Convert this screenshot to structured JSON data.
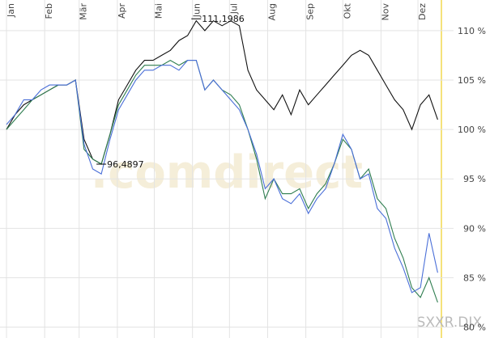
{
  "chart_data": {
    "type": "line",
    "watermark": ".comdirect",
    "symbol": "SXXR.DJX",
    "annotations": [
      {
        "text": "111,1986",
        "x": 154,
        "y": 111.1986
      },
      {
        "text": "96,4897",
        "x": 77,
        "y": 96.4897
      }
    ],
    "x": [
      0,
      7,
      14,
      21,
      28,
      35,
      42,
      49,
      56,
      63,
      70,
      77,
      84,
      91,
      98,
      105,
      112,
      119,
      126,
      133,
      140,
      147,
      154,
      161,
      168,
      175,
      182,
      189,
      196,
      203,
      210,
      217,
      224,
      231,
      238,
      245,
      252,
      259,
      266,
      273,
      280,
      287,
      294,
      301,
      308,
      315,
      322,
      329,
      336,
      343,
      350
    ],
    "xlim": [
      0,
      355
    ],
    "xticks": [
      {
        "value": 0,
        "label": "Jan"
      },
      {
        "value": 31,
        "label": "Feb"
      },
      {
        "value": 59,
        "label": "Mär"
      },
      {
        "value": 90,
        "label": "Apr"
      },
      {
        "value": 120,
        "label": "Mai"
      },
      {
        "value": 151,
        "label": "Jun"
      },
      {
        "value": 181,
        "label": "Jul"
      },
      {
        "value": 212,
        "label": "Aug"
      },
      {
        "value": 243,
        "label": "Sep"
      },
      {
        "value": 273,
        "label": "Okt"
      },
      {
        "value": 304,
        "label": "Nov"
      },
      {
        "value": 334,
        "label": "Dez"
      }
    ],
    "ylim": [
      78.9,
      113.1
    ],
    "yticks": [
      {
        "value": 80,
        "label": "80 %"
      },
      {
        "value": 85,
        "label": "85 %"
      },
      {
        "value": 90,
        "label": "90 %"
      },
      {
        "value": 95,
        "label": "95 %"
      },
      {
        "value": 100,
        "label": "100 %"
      },
      {
        "value": 105,
        "label": "105 %"
      },
      {
        "value": 110,
        "label": "110 %"
      }
    ],
    "grid": true,
    "series": [
      {
        "color": "#111111",
        "values": [
          100,
          101.5,
          102.5,
          103,
          103.5,
          104,
          104.5,
          104.5,
          105,
          99,
          97,
          96.5,
          99.5,
          103,
          104.5,
          106,
          107,
          107,
          107.5,
          108,
          109,
          109.5,
          111,
          110,
          111,
          110.5,
          111,
          110.5,
          106,
          104,
          103,
          102,
          103.5,
          101.5,
          104,
          102.5,
          103.5,
          104.5,
          105.5,
          106.5,
          107.5,
          108,
          107.5,
          106,
          104.5,
          103,
          102,
          100,
          102.5,
          103.5,
          101
        ]
      },
      {
        "color": "#2e7d4f",
        "values": [
          100,
          101,
          102,
          103,
          103.5,
          104,
          104.5,
          104.5,
          105,
          98,
          97,
          96.5,
          99.5,
          102.5,
          104,
          105.5,
          106.5,
          106.5,
          106.5,
          107,
          106.5,
          107,
          107,
          104,
          105,
          104,
          103.5,
          102.5,
          100,
          97,
          93,
          95,
          93.5,
          93.5,
          94,
          92,
          93.5,
          94.5,
          96.5,
          99,
          98,
          95,
          96,
          93,
          92,
          89,
          87,
          84,
          83,
          85,
          82.5
        ]
      },
      {
        "color": "#4a6fd8",
        "values": [
          100.5,
          101.5,
          103,
          103,
          104,
          104.5,
          104.5,
          104.5,
          105,
          98.5,
          96,
          95.5,
          99,
          102,
          103.5,
          105,
          106,
          106,
          106.5,
          106.5,
          106,
          107,
          107,
          104,
          105,
          104,
          103,
          102,
          100,
          97.5,
          94,
          95,
          93,
          92.5,
          93.5,
          91.5,
          93,
          94,
          96.5,
          99.5,
          98,
          95,
          95.5,
          92,
          91,
          88,
          86,
          83.5,
          84,
          89.5,
          85.5
        ]
      }
    ]
  }
}
